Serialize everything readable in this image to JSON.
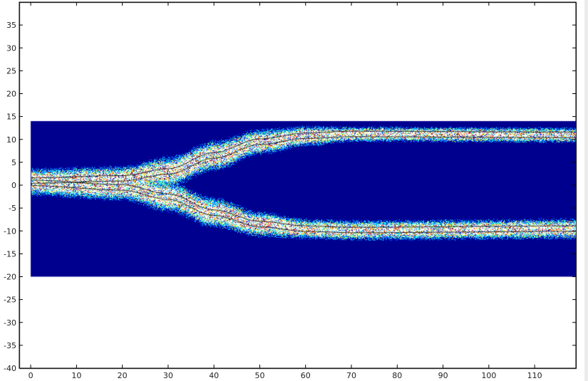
{
  "chart_data": {
    "type": "heatmap",
    "title": "",
    "xlabel": "",
    "ylabel": "",
    "xlim": [
      -2.5,
      119
    ],
    "ylim": [
      -40,
      40
    ],
    "x_ticks": [
      0,
      10,
      20,
      30,
      40,
      50,
      60,
      70,
      80,
      90,
      100,
      110
    ],
    "y_ticks": [
      35,
      30,
      25,
      20,
      15,
      10,
      5,
      0,
      -5,
      -10,
      -15,
      -20,
      -25,
      -30,
      -35,
      -40
    ],
    "colormap": "jet",
    "background_color": "#00008f",
    "data_extent": {
      "x": [
        0,
        119
      ],
      "y": [
        -20,
        14
      ]
    },
    "grid": false,
    "branches": [
      {
        "x": [
          0,
          20,
          30,
          40,
          50,
          60,
          70,
          119
        ],
        "y": [
          1,
          1.5,
          3,
          6.5,
          9.5,
          10.8,
          11.2,
          11
        ],
        "spread": [
          2.5,
          2.5,
          3,
          3,
          2.5,
          2,
          1.5,
          1.5
        ]
      },
      {
        "x": [
          0,
          20,
          30,
          40,
          50,
          60,
          70,
          119
        ],
        "y": [
          0.5,
          -0.5,
          -2.5,
          -6,
          -8.5,
          -9.5,
          -9.8,
          -9.5
        ],
        "spread": [
          2.5,
          2.5,
          3,
          3,
          2.5,
          2,
          2,
          2
        ]
      }
    ]
  }
}
